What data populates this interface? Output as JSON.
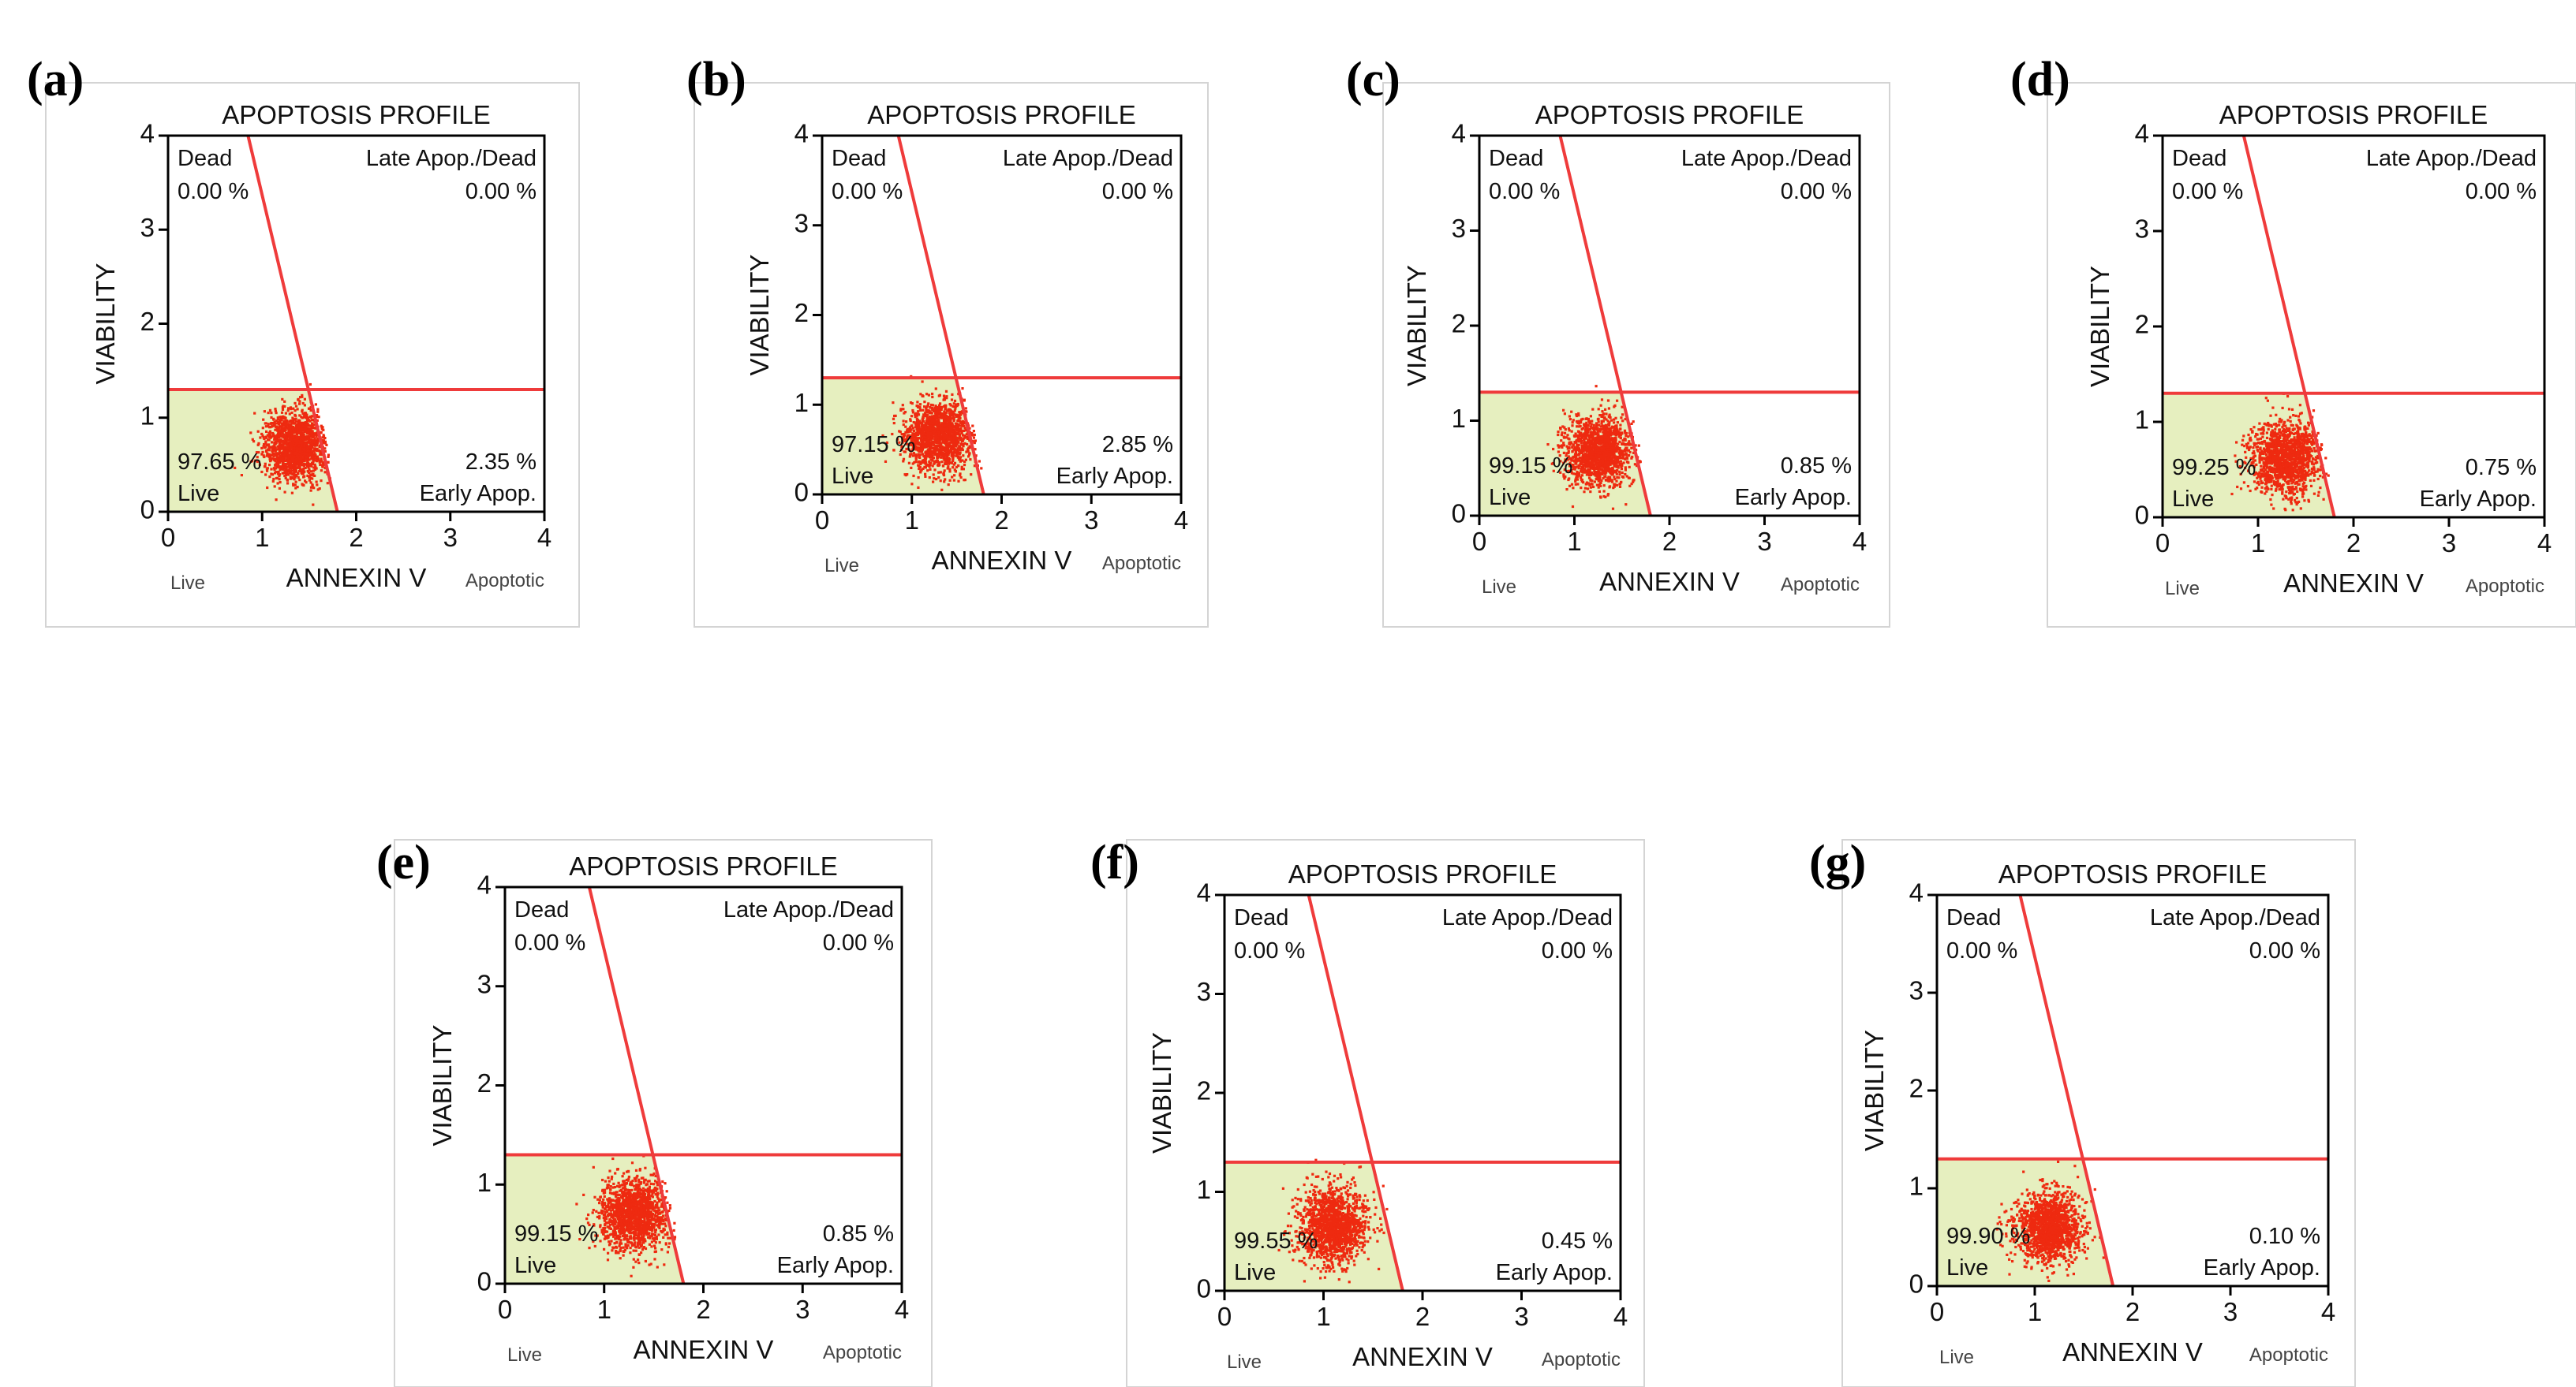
{
  "chart_data": [
    {
      "type": "scatter",
      "panel": "(a)",
      "title": "APOPTOSIS PROFILE",
      "xlabel": "ANNEXIN V",
      "ylabel": "VIABILITY",
      "x_side_left": "Live",
      "x_side_right": "Apoptotic",
      "xlim": [
        0,
        4
      ],
      "ylim": [
        0,
        4
      ],
      "xticks": [
        "0",
        "1",
        "2",
        "3",
        "4"
      ],
      "yticks": [
        "0",
        "1",
        "2",
        "3",
        "4"
      ],
      "gate_horizontal_y": 1.3,
      "gate_diagonal": [
        [
          0.85,
          4.0
        ],
        [
          1.8,
          0.0
        ]
      ],
      "cluster": {
        "cx": 1.35,
        "cy": 0.7,
        "sx": 0.17,
        "sy": 0.19
      },
      "quadrants": {
        "dead": {
          "label": "Dead",
          "value": "0.00 %"
        },
        "late": {
          "label": "Late Apop./Dead",
          "value": "0.00 %"
        },
        "live": {
          "label": "Live",
          "value": "97.65 %"
        },
        "early": {
          "label": "Early Apop.",
          "value": "2.35 %"
        }
      }
    },
    {
      "type": "scatter",
      "panel": "(b)",
      "title": "APOPTOSIS PROFILE",
      "xlabel": "ANNEXIN V",
      "ylabel": "VIABILITY",
      "x_side_left": "Live",
      "x_side_right": "Apoptotic",
      "xlim": [
        0,
        4
      ],
      "ylim": [
        0,
        4
      ],
      "xticks": [
        "0",
        "1",
        "2",
        "3",
        "4"
      ],
      "yticks": [
        "0",
        "1",
        "2",
        "3",
        "4"
      ],
      "gate_horizontal_y": 1.3,
      "gate_diagonal": [
        [
          0.85,
          4.0
        ],
        [
          1.8,
          0.0
        ]
      ],
      "cluster": {
        "cx": 1.3,
        "cy": 0.65,
        "sx": 0.19,
        "sy": 0.2
      },
      "quadrants": {
        "dead": {
          "label": "Dead",
          "value": "0.00 %"
        },
        "late": {
          "label": "Late Apop./Dead",
          "value": "0.00 %"
        },
        "live": {
          "label": "Live",
          "value": "97.15 %"
        },
        "early": {
          "label": "Early Apop.",
          "value": "2.85 %"
        }
      }
    },
    {
      "type": "scatter",
      "panel": "(c)",
      "title": "APOPTOSIS PROFILE",
      "xlabel": "ANNEXIN V",
      "ylabel": "VIABILITY",
      "x_side_left": "Live",
      "x_side_right": "Apoptotic",
      "xlim": [
        0,
        4
      ],
      "ylim": [
        0,
        4
      ],
      "xticks": [
        "0",
        "1",
        "2",
        "3",
        "4"
      ],
      "yticks": [
        "0",
        "1",
        "2",
        "3",
        "4"
      ],
      "gate_horizontal_y": 1.3,
      "gate_diagonal": [
        [
          0.85,
          4.0
        ],
        [
          1.8,
          0.0
        ]
      ],
      "cluster": {
        "cx": 1.25,
        "cy": 0.68,
        "sx": 0.17,
        "sy": 0.18
      },
      "quadrants": {
        "dead": {
          "label": "Dead",
          "value": "0.00 %"
        },
        "late": {
          "label": "Late Apop./Dead",
          "value": "0.00 %"
        },
        "live": {
          "label": "Live",
          "value": "99.15 %"
        },
        "early": {
          "label": "Early Apop.",
          "value": "0.85 %"
        }
      }
    },
    {
      "type": "scatter",
      "panel": "(d)",
      "title": "APOPTOSIS PROFILE",
      "xlabel": "ANNEXIN V",
      "ylabel": "VIABILITY",
      "x_side_left": "Live",
      "x_side_right": "Apoptotic",
      "xlim": [
        0,
        4
      ],
      "ylim": [
        0,
        4
      ],
      "xticks": [
        "0",
        "1",
        "2",
        "3",
        "4"
      ],
      "yticks": [
        "0",
        "1",
        "2",
        "3",
        "4"
      ],
      "gate_horizontal_y": 1.3,
      "gate_diagonal": [
        [
          0.85,
          4.0
        ],
        [
          1.8,
          0.0
        ]
      ],
      "cluster": {
        "cx": 1.3,
        "cy": 0.62,
        "sx": 0.18,
        "sy": 0.2
      },
      "quadrants": {
        "dead": {
          "label": "Dead",
          "value": "0.00 %"
        },
        "late": {
          "label": "Late Apop./Dead",
          "value": "0.00 %"
        },
        "live": {
          "label": "Live",
          "value": "99.25 %"
        },
        "early": {
          "label": "Early Apop.",
          "value": "0.75 %"
        }
      }
    },
    {
      "type": "scatter",
      "panel": "(e)",
      "title": "APOPTOSIS PROFILE",
      "xlabel": "ANNEXIN V",
      "ylabel": "VIABILITY",
      "x_side_left": "Live",
      "x_side_right": "Apoptotic",
      "xlim": [
        0,
        4
      ],
      "ylim": [
        0,
        4
      ],
      "xticks": [
        "0",
        "1",
        "2",
        "3",
        "4"
      ],
      "yticks": [
        "0",
        "1",
        "2",
        "3",
        "4"
      ],
      "gate_horizontal_y": 1.3,
      "gate_diagonal": [
        [
          0.85,
          4.0
        ],
        [
          1.8,
          0.0
        ]
      ],
      "cluster": {
        "cx": 1.3,
        "cy": 0.7,
        "sx": 0.17,
        "sy": 0.18
      },
      "quadrants": {
        "dead": {
          "label": "Dead",
          "value": "0.00 %"
        },
        "late": {
          "label": "Late Apop./Dead",
          "value": "0.00 %"
        },
        "live": {
          "label": "Live",
          "value": "99.15 %"
        },
        "early": {
          "label": "Early Apop.",
          "value": "0.85 %"
        }
      }
    },
    {
      "type": "scatter",
      "panel": "(f)",
      "title": "APOPTOSIS PROFILE",
      "xlabel": "ANNEXIN V",
      "ylabel": "VIABILITY",
      "x_side_left": "Live",
      "x_side_right": "Apoptotic",
      "xlim": [
        0,
        4
      ],
      "ylim": [
        0,
        4
      ],
      "xticks": [
        "0",
        "1",
        "2",
        "3",
        "4"
      ],
      "yticks": [
        "0",
        "1",
        "2",
        "3",
        "4"
      ],
      "gate_horizontal_y": 1.3,
      "gate_diagonal": [
        [
          0.85,
          4.0
        ],
        [
          1.8,
          0.0
        ]
      ],
      "cluster": {
        "cx": 1.1,
        "cy": 0.65,
        "sx": 0.17,
        "sy": 0.19
      },
      "quadrants": {
        "dead": {
          "label": "Dead",
          "value": "0.00 %"
        },
        "late": {
          "label": "Late Apop./Dead",
          "value": "0.00 %"
        },
        "live": {
          "label": "Live",
          "value": "99.55 %"
        },
        "early": {
          "label": "Early Apop.",
          "value": "0.45 %"
        }
      }
    },
    {
      "type": "scatter",
      "panel": "(g)",
      "title": "APOPTOSIS PROFILE",
      "xlabel": "ANNEXIN V",
      "ylabel": "VIABILITY",
      "x_side_left": "Live",
      "x_side_right": "Apoptotic",
      "xlim": [
        0,
        4
      ],
      "ylim": [
        0,
        4
      ],
      "xticks": [
        "0",
        "1",
        "2",
        "3",
        "4"
      ],
      "yticks": [
        "0",
        "1",
        "2",
        "3",
        "4"
      ],
      "gate_horizontal_y": 1.3,
      "gate_diagonal": [
        [
          0.85,
          4.0
        ],
        [
          1.8,
          0.0
        ]
      ],
      "cluster": {
        "cx": 1.15,
        "cy": 0.6,
        "sx": 0.17,
        "sy": 0.18
      },
      "quadrants": {
        "dead": {
          "label": "Dead",
          "value": "0.00 %"
        },
        "late": {
          "label": "Late Apop./Dead",
          "value": "0.00 %"
        },
        "live": {
          "label": "Live",
          "value": "99.90 %"
        },
        "early": {
          "label": "Early Apop.",
          "value": "0.10 %"
        }
      }
    }
  ],
  "colors": {
    "gate": "#ef3b3b",
    "dots": "#ee2a10",
    "live_region": "#e6efbf"
  }
}
